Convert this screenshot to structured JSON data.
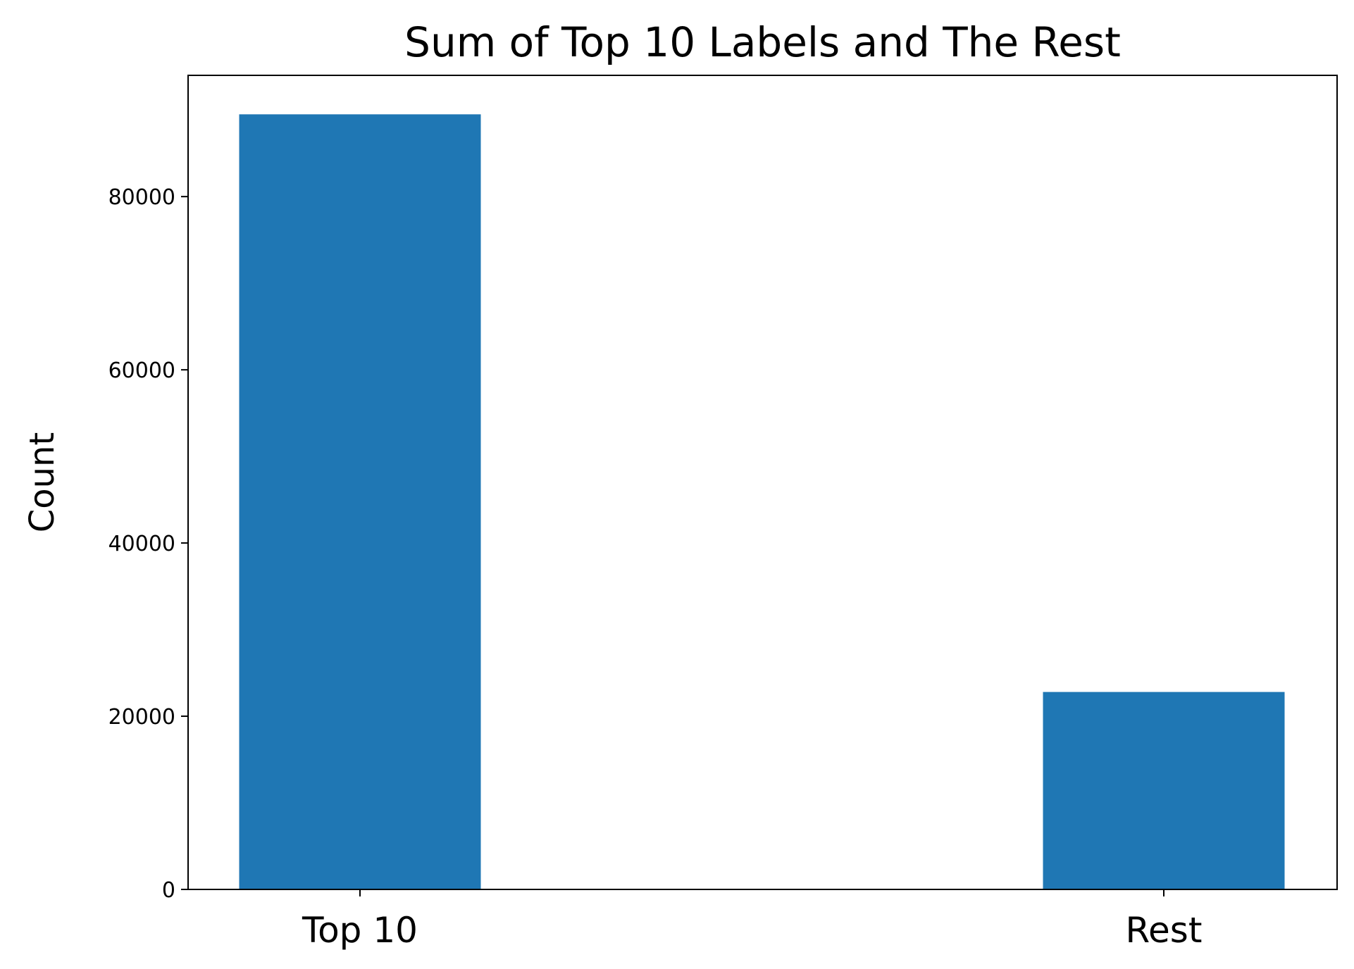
{
  "chart_data": {
    "type": "bar",
    "title": "Sum of Top 10 Labels and The Rest",
    "xlabel": "",
    "ylabel": "Count",
    "categories": [
      "Top 10",
      "Rest"
    ],
    "values": [
      89500,
      22800
    ],
    "ylim": [
      0,
      94000
    ],
    "yticks": [
      0,
      20000,
      40000,
      60000,
      80000
    ],
    "ytick_labels": [
      "0",
      "20000",
      "40000",
      "60000",
      "80000"
    ],
    "grid": false,
    "legend": "none",
    "bar_color": "#1f77b4"
  }
}
